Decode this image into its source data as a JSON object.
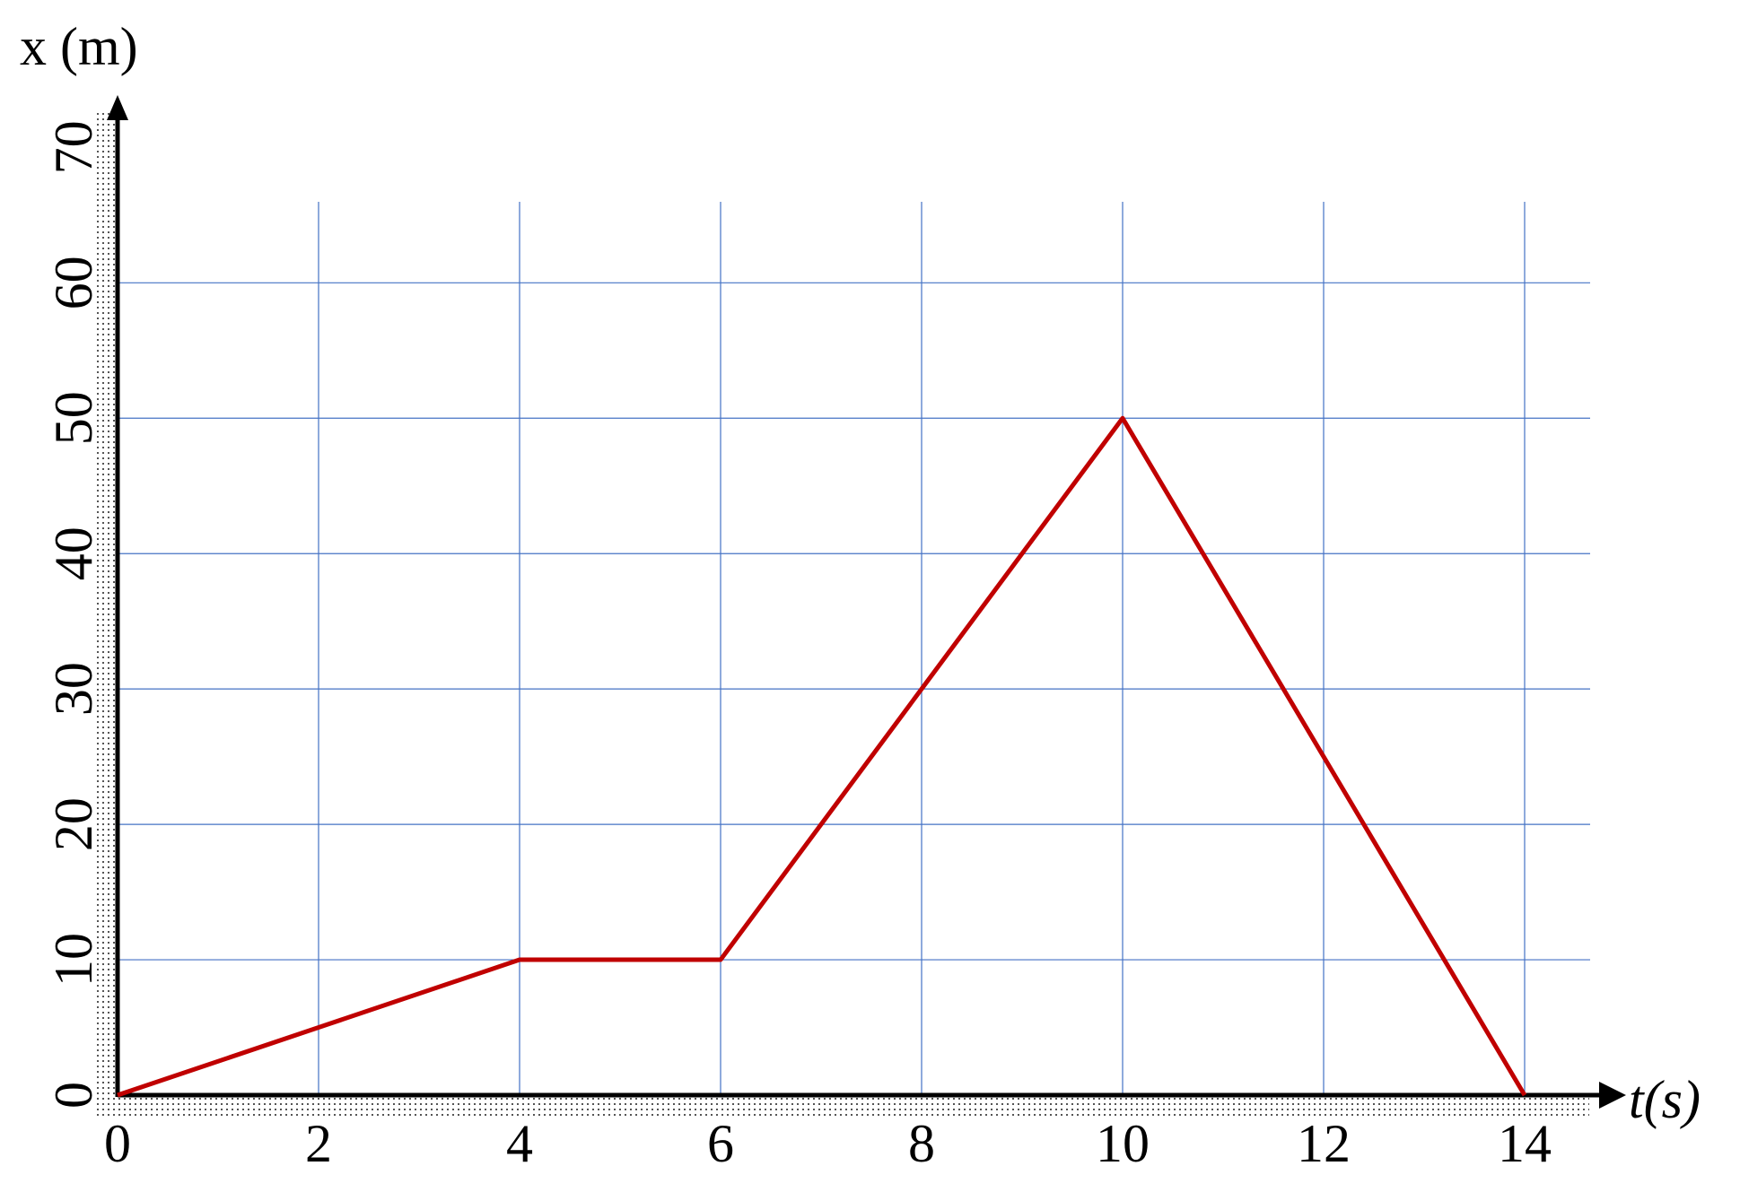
{
  "chart_data": {
    "type": "line",
    "x_label": "t(s)",
    "y_label": "x (m)",
    "series": [
      {
        "name": null,
        "color": "#c00000",
        "x": [
          0,
          4,
          6,
          10,
          14
        ],
        "values": [
          0,
          10,
          10,
          50,
          0
        ]
      }
    ],
    "xlim": [
      0,
      15
    ],
    "ylim": [
      0,
      74
    ],
    "xticks": [
      0,
      2,
      4,
      6,
      8,
      10,
      12,
      14
    ],
    "yticks": [
      0,
      10,
      20,
      30,
      40,
      50,
      60,
      70
    ],
    "grid": true,
    "grid_color": "#4472c4"
  }
}
